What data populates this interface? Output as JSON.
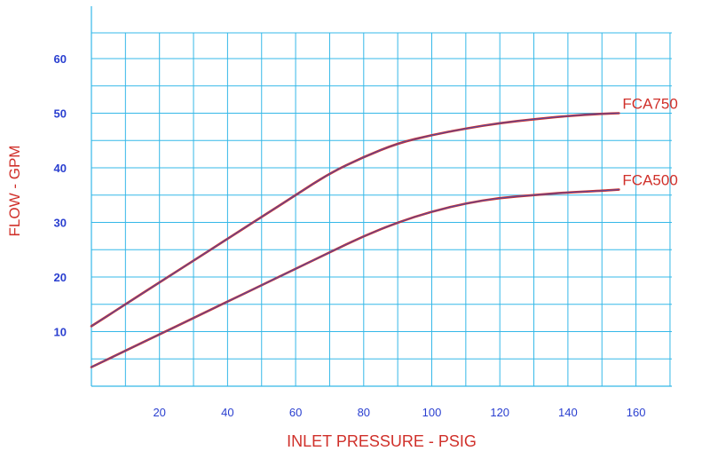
{
  "chart_data": {
    "type": "line",
    "xlabel": "INLET PRESSURE - PSIG",
    "ylabel": "FLOW - GPM",
    "x_tick_labels": [
      "20",
      "40",
      "60",
      "80",
      "100",
      "120",
      "140",
      "160"
    ],
    "y_tick_labels": [
      "10",
      "20",
      "30",
      "40",
      "50",
      "60"
    ],
    "xlim": [
      0,
      170
    ],
    "ylim": [
      0,
      70
    ],
    "grid": true,
    "series": [
      {
        "name": "FCA750",
        "x": [
          0,
          10,
          20,
          30,
          40,
          50,
          60,
          70,
          80,
          90,
          100,
          110,
          120,
          130,
          140,
          150,
          155
        ],
        "y": [
          11,
          15,
          19,
          23,
          27,
          31,
          35,
          39,
          42,
          44.5,
          46,
          47.2,
          48.2,
          48.9,
          49.5,
          49.9,
          50
        ]
      },
      {
        "name": "FCA500",
        "x": [
          0,
          10,
          20,
          30,
          40,
          50,
          60,
          70,
          80,
          90,
          100,
          110,
          120,
          130,
          140,
          150,
          155
        ],
        "y": [
          3.5,
          6.5,
          9.5,
          12.5,
          15.5,
          18.5,
          21.5,
          24.5,
          27.5,
          30,
          32,
          33.5,
          34.5,
          35,
          35.5,
          35.8,
          36
        ]
      }
    ],
    "colors": {
      "grid": "#35b8e8",
      "axis_text": "#2a3fd0",
      "label_text": "#d0302a",
      "line_outer": "#d0302a",
      "line_inner": "#4a4aa8"
    }
  }
}
